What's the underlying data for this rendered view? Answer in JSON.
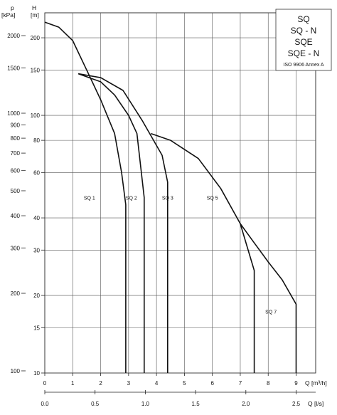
{
  "chart_data": {
    "type": "line",
    "y_label_pressure": "p",
    "y_unit_pressure": "[kPa]",
    "y_label_head": "H",
    "y_unit_head": "[m]",
    "x_label_m3h": "Q [m³/h]",
    "x_label_ls": "Q [l/s]",
    "yscale": "log",
    "ylim": [
      10,
      250
    ],
    "xlim": [
      0,
      9.7
    ],
    "grid": true,
    "head_ticks": [
      "10",
      "15",
      "20",
      "30",
      "40",
      "60",
      "80",
      "100",
      "150",
      "200"
    ],
    "pressure_ticks": [
      "100",
      "200",
      "300",
      "400",
      "500",
      "600",
      "700",
      "800",
      "900",
      "1000",
      "1500",
      "2000"
    ],
    "x_ticks_m3h": [
      "0",
      "1",
      "2",
      "3",
      "4",
      "5",
      "6",
      "7",
      "8",
      "9"
    ],
    "x_ticks_ls": [
      "0.0",
      "0.5",
      "1.0",
      "1.5",
      "2.0",
      "2.5"
    ],
    "legend_box": {
      "lines": [
        "SQ",
        "SQ - N",
        "SQE",
        "SQE - N"
      ],
      "note": "ISO 9906 Annex A"
    },
    "series": [
      {
        "name": "SQ 1",
        "x": [
          0,
          0.5,
          1.0,
          1.5,
          2.0,
          2.5,
          2.75,
          2.9,
          2.9
        ],
        "y": [
          230,
          220,
          195,
          150,
          115,
          85,
          60,
          45,
          10
        ]
      },
      {
        "name": "SQ 2",
        "x": [
          1.2,
          2.0,
          2.5,
          3.0,
          3.3,
          3.56,
          3.56
        ],
        "y": [
          145,
          135,
          120,
          100,
          85,
          48,
          10
        ]
      },
      {
        "name": "SQ 3",
        "x": [
          1.2,
          2.0,
          2.8,
          3.5,
          4.2,
          4.4,
          4.4
        ],
        "y": [
          145,
          140,
          125,
          95,
          70,
          55,
          10
        ]
      },
      {
        "name": "SQ 5",
        "x": [
          3.8,
          4.5,
          5.5,
          6.3,
          7.0,
          7.5,
          7.5
        ],
        "y": [
          85,
          80,
          68,
          52,
          38,
          25,
          10
        ]
      },
      {
        "name": "SQ 7",
        "x": [
          7.0,
          7.5,
          8.0,
          8.5,
          9.0,
          9.0
        ],
        "y": [
          38,
          32,
          27,
          23,
          18.5,
          10
        ]
      }
    ]
  }
}
